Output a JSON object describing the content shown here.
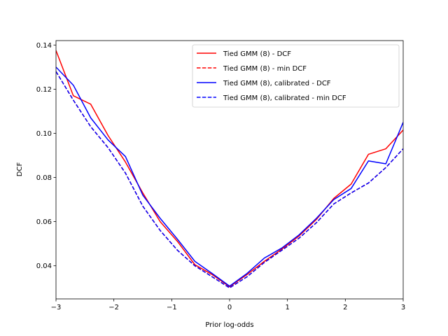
{
  "chart_data": {
    "type": "line",
    "title": "",
    "xlabel": "Prior log-odds",
    "ylabel": "DCF",
    "xlim": [
      -3,
      3
    ],
    "ylim": [
      0.025,
      0.142
    ],
    "xticks": [
      -3,
      -2,
      -1,
      0,
      1,
      2,
      3
    ],
    "xtick_labels": [
      "−3",
      "−2",
      "−1",
      "0",
      "1",
      "2",
      "3"
    ],
    "yticks": [
      0.04,
      0.06,
      0.08,
      0.1,
      0.12,
      0.14
    ],
    "ytick_labels": [
      "0.04",
      "0.06",
      "0.08",
      "0.10",
      "0.12",
      "0.14"
    ],
    "grid": false,
    "legend_position": "top-right",
    "x": [
      -3.0,
      -2.7,
      -2.4,
      -2.1,
      -1.8,
      -1.5,
      -1.2,
      -0.9,
      -0.6,
      -0.3,
      0.0,
      0.3,
      0.6,
      0.9,
      1.2,
      1.5,
      1.8,
      2.1,
      2.4,
      2.7,
      3.0
    ],
    "series": [
      {
        "name": "Tied GMM (8) - DCF",
        "color": "#ff0000",
        "dash": "solid",
        "values": [
          0.1375,
          0.117,
          0.1132,
          0.099,
          0.087,
          0.073,
          0.06,
          0.051,
          0.0405,
          0.036,
          0.0305,
          0.036,
          0.042,
          0.0475,
          0.0535,
          0.061,
          0.0705,
          0.077,
          0.0905,
          0.093,
          0.1015
        ]
      },
      {
        "name": "Tied GMM (8) - min DCF",
        "color": "#ff0000",
        "dash": "dashed",
        "values": [
          0.128,
          0.115,
          0.103,
          0.0935,
          0.082,
          0.067,
          0.056,
          0.047,
          0.04,
          0.035,
          0.03,
          0.035,
          0.0415,
          0.047,
          0.0525,
          0.0595,
          0.068,
          0.073,
          0.0775,
          0.0845,
          0.093
        ]
      },
      {
        "name": "Tied GMM (8), calibrated - DCF",
        "color": "#0000ff",
        "dash": "solid",
        "values": [
          0.13,
          0.1218,
          0.107,
          0.097,
          0.0895,
          0.072,
          0.0615,
          0.052,
          0.042,
          0.0365,
          0.0308,
          0.0365,
          0.0435,
          0.048,
          0.054,
          0.0615,
          0.07,
          0.075,
          0.0875,
          0.0862,
          0.105
        ]
      },
      {
        "name": "Tied GMM (8), calibrated - min DCF",
        "color": "#0000ff",
        "dash": "dashed",
        "values": [
          0.128,
          0.115,
          0.103,
          0.0935,
          0.082,
          0.067,
          0.056,
          0.047,
          0.04,
          0.035,
          0.03,
          0.035,
          0.0415,
          0.047,
          0.0525,
          0.0595,
          0.068,
          0.073,
          0.0775,
          0.0845,
          0.093
        ]
      }
    ]
  }
}
